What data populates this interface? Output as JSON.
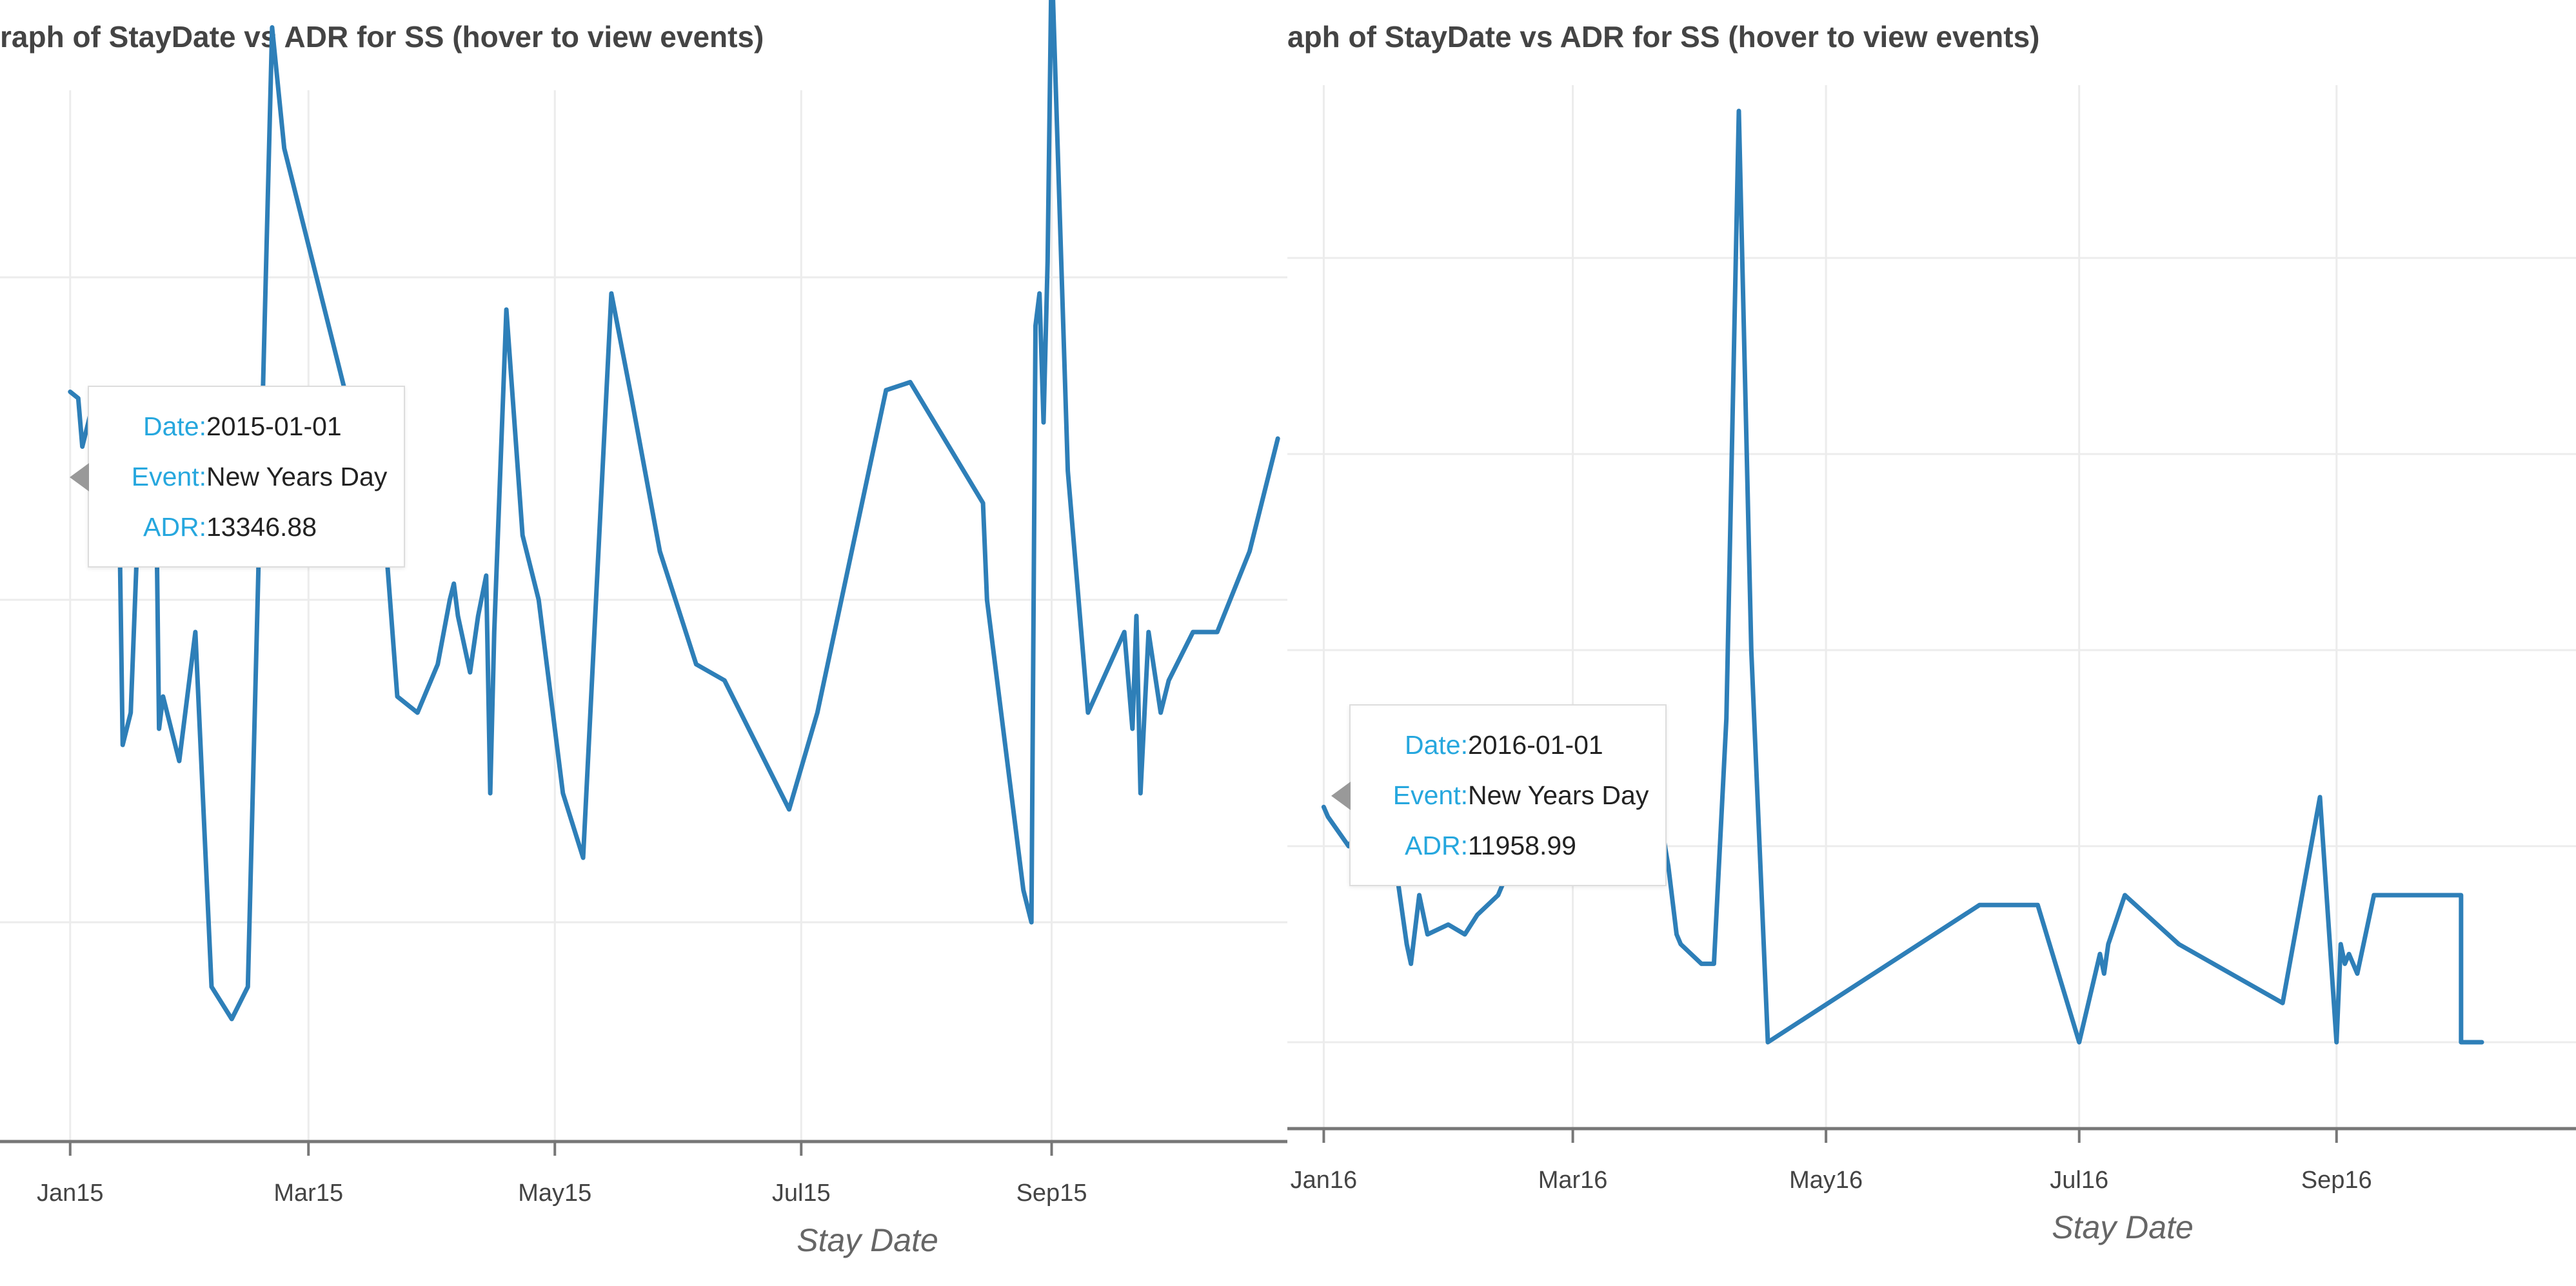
{
  "chart_data": [
    {
      "type": "line",
      "title": "raph of StayDate vs ADR for SS (hover to view events)",
      "xlabel": "Stay Date",
      "ylabel": "",
      "x_ticks": [
        "Jan15",
        "Mar15",
        "May15",
        "Jul15",
        "Sep15"
      ],
      "x_tick_dates": [
        "2015-01-01",
        "2015-03-01",
        "2015-05-01",
        "2015-07-01",
        "2015-09-01"
      ],
      "xlim": [
        "2014-12-29",
        "2015-10-30"
      ],
      "ylim": [
        5,
        11
      ],
      "y_gridlines": [
        6,
        8,
        10
      ],
      "grid": true,
      "series": [
        {
          "color": "#2e7fb8",
          "x": [
            "2015-01-01",
            "2015-01-03",
            "2015-01-04",
            "2015-01-05",
            "2015-01-06",
            "2015-01-08",
            "2015-01-10",
            "2015-01-12",
            "2015-01-13",
            "2015-01-14",
            "2015-01-16",
            "2015-01-18",
            "2015-01-20",
            "2015-01-21",
            "2015-01-22",
            "2015-01-23",
            "2015-01-24",
            "2015-01-28",
            "2015-02-01",
            "2015-02-05",
            "2015-02-10",
            "2015-02-14",
            "2015-02-20",
            "2015-02-23",
            "2015-03-05",
            "2015-03-10",
            "2015-03-15",
            "2015-03-20",
            "2015-03-23",
            "2015-03-28",
            "2015-04-02",
            "2015-04-05",
            "2015-04-06",
            "2015-04-07",
            "2015-04-10",
            "2015-04-12",
            "2015-04-14",
            "2015-04-15",
            "2015-04-16",
            "2015-04-19",
            "2015-04-23",
            "2015-04-27",
            "2015-05-03",
            "2015-05-08",
            "2015-05-15",
            "2015-05-20",
            "2015-05-27",
            "2015-06-05",
            "2015-06-12",
            "2015-06-28",
            "2015-07-05",
            "2015-07-22",
            "2015-07-28",
            "2015-08-15",
            "2015-08-16",
            "2015-08-25",
            "2015-08-27",
            "2015-08-28",
            "2015-08-29",
            "2015-08-30",
            "2015-08-31",
            "2015-09-01",
            "2015-09-05",
            "2015-09-10",
            "2015-09-19",
            "2015-09-21",
            "2015-09-22",
            "2015-09-23",
            "2015-09-25",
            "2015-09-28",
            "2015-09-30",
            "2015-10-06",
            "2015-10-12",
            "2015-10-20",
            "2015-10-27"
          ],
          "y": [
            9.29,
            9.25,
            8.95,
            9.05,
            9.15,
            9.0,
            8.7,
            8.9,
            8.85,
            7.1,
            7.3,
            8.6,
            9.25,
            8.9,
            9.25,
            7.2,
            7.4,
            7.0,
            7.8,
            5.6,
            5.4,
            5.6,
            11.55,
            10.8,
            9.8,
            9.3,
            9.0,
            8.4,
            7.4,
            7.3,
            7.6,
            8.0,
            8.1,
            7.9,
            7.55,
            7.9,
            8.15,
            6.8,
            7.8,
            9.8,
            8.4,
            8.0,
            6.8,
            6.4,
            9.9,
            9.25,
            8.3,
            7.6,
            7.5,
            6.7,
            7.3,
            9.3,
            9.35,
            8.6,
            8.0,
            6.2,
            6.0,
            9.7,
            9.9,
            9.1,
            10.1,
            12.0,
            8.8,
            7.3,
            7.8,
            7.2,
            7.9,
            6.8,
            7.8,
            7.3,
            7.5,
            7.8,
            7.8,
            8.3,
            9.0
          ]
        }
      ],
      "tooltip": {
        "date_label": "Date:",
        "date_value": "2015-01-01",
        "event_label": "Event:",
        "event_value": "New Years Day",
        "adr_label": "ADR:",
        "adr_value": "13346.88"
      }
    },
    {
      "type": "line",
      "title": "aph of StayDate vs ADR for SS (hover to view events)",
      "xlabel": "Stay Date",
      "ylabel": "",
      "x_ticks": [
        "Jan16",
        "Mar16",
        "May16",
        "Jul16",
        "Sep16"
      ],
      "x_tick_dates": [
        "2016-01-01",
        "2016-03-01",
        "2016-05-01",
        "2016-07-01",
        "2016-09-01"
      ],
      "xlim": [
        "2015-12-31",
        "2016-10-29"
      ],
      "ylim": [
        0,
        10
      ],
      "y_gridlines": [
        0.5,
        2.5,
        4.5,
        6.5,
        8.5
      ],
      "grid": true,
      "series": [
        {
          "color": "#2e7fb8",
          "x": [
            "2016-01-01",
            "2016-01-02",
            "2016-01-07",
            "2016-01-10",
            "2016-01-13",
            "2016-01-15",
            "2016-01-18",
            "2016-01-21",
            "2016-01-22",
            "2016-01-24",
            "2016-01-26",
            "2016-01-31",
            "2016-02-04",
            "2016-02-07",
            "2016-02-12",
            "2016-02-18",
            "2016-03-04",
            "2016-03-07",
            "2016-03-10",
            "2016-03-16",
            "2016-03-22",
            "2016-03-24",
            "2016-03-26",
            "2016-03-27",
            "2016-04-01",
            "2016-04-04",
            "2016-04-07",
            "2016-04-10",
            "2016-04-13",
            "2016-04-17",
            "2016-06-07",
            "2016-06-21",
            "2016-07-01",
            "2016-07-06",
            "2016-07-07",
            "2016-07-08",
            "2016-07-12",
            "2016-07-25",
            "2016-08-19",
            "2016-08-28",
            "2016-09-01",
            "2016-09-02",
            "2016-09-03",
            "2016-09-04",
            "2016-09-06",
            "2016-09-10",
            "2016-09-31",
            "2016-10-01",
            "2016-10-05",
            "2016-10-06"
          ],
          "y": [
            2.9,
            2.8,
            2.5,
            2.7,
            2.6,
            2.5,
            2.4,
            1.5,
            1.3,
            2.0,
            1.6,
            1.7,
            1.6,
            1.8,
            2.0,
            2.6,
            3.5,
            3.8,
            3.2,
            2.6,
            2.8,
            2.3,
            1.6,
            1.5,
            1.3,
            1.3,
            3.8,
            10.0,
            4.5,
            0.5,
            1.9,
            1.9,
            0.5,
            1.4,
            1.2,
            1.5,
            2.0,
            1.5,
            0.9,
            3.0,
            0.5,
            1.5,
            1.3,
            1.4,
            1.2,
            2.0,
            2.0,
            0.5,
            0.5,
            0.5
          ]
        }
      ],
      "tooltip": {
        "date_label": "Date:",
        "date_value": "2016-01-01",
        "event_label": "Event:",
        "event_value": "New Years Day",
        "adr_label": "ADR:",
        "adr_value": "11958.99"
      }
    }
  ]
}
